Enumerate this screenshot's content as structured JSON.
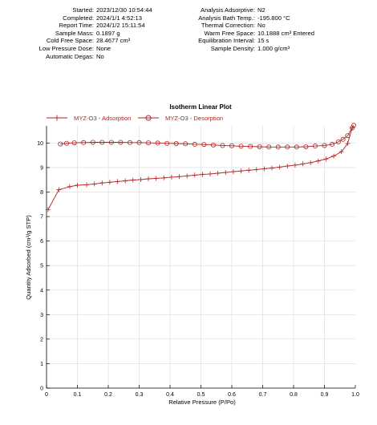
{
  "info_left": [
    {
      "label": "Started:",
      "value": "2023/12/30 10:54:44"
    },
    {
      "label": "Completed:",
      "value": "2024/1/1 4:52:13"
    },
    {
      "label": "Report Time:",
      "value": "2024/1/2 15:11:54"
    },
    {
      "label": "Sample Mass:",
      "value": "0.1897 g"
    },
    {
      "label": "Cold Free Space:",
      "value": "28.4677 cm³"
    },
    {
      "label": "Low Pressure Dose:",
      "value": "None"
    },
    {
      "label": "Automatic Degas:",
      "value": "No"
    }
  ],
  "info_right": [
    {
      "label": "Analysis Adsorptive:",
      "value": "N2"
    },
    {
      "label": "Analysis Bath Temp.:",
      "value": "-195.800 °C"
    },
    {
      "label": "Thermal Correction:",
      "value": "No"
    },
    {
      "label": "Warm Free Space:",
      "value": "10.1888 cm³ Entered"
    },
    {
      "label": "Equilibration Interval:",
      "value": "15 s"
    },
    {
      "label": "Sample Density:",
      "value": "1.000 g/cm³"
    }
  ],
  "colors": {
    "series": "#b22222",
    "grid": "#d9d9d9",
    "axis": "#000000"
  },
  "chart_data": {
    "type": "line",
    "title": "Isotherm Linear Plot",
    "xlabel": "Relative Pressure (P/Po)",
    "ylabel": "Quantity Adsorbed (cm³/g STP)",
    "xlim": [
      0,
      1.0
    ],
    "ylim": [
      0,
      10.7
    ],
    "xticks": [
      0,
      0.1,
      0.2,
      0.3,
      0.4,
      0.5,
      0.6,
      0.7,
      0.8,
      0.9,
      1.0
    ],
    "xtick_labels": [
      "0",
      "0.1",
      "0.2",
      "0.3",
      "0.4",
      "0.5",
      "0.6",
      "0.7",
      "0.8",
      "0.9",
      "1.0"
    ],
    "yticks": [
      0,
      1,
      2,
      3,
      4,
      5,
      6,
      7,
      8,
      9,
      10
    ],
    "ytick_labels": [
      "0",
      "1",
      "2",
      "3",
      "4",
      "5",
      "6",
      "7",
      "8",
      "9",
      "10"
    ],
    "grid": true,
    "legend_position": "top-left",
    "series": [
      {
        "name": "MYZ-O3 - Adsorption",
        "marker": "plus",
        "x": [
          0.005,
          0.04,
          0.075,
          0.1,
          0.13,
          0.155,
          0.18,
          0.205,
          0.23,
          0.255,
          0.28,
          0.305,
          0.33,
          0.355,
          0.38,
          0.405,
          0.43,
          0.455,
          0.48,
          0.505,
          0.53,
          0.555,
          0.58,
          0.605,
          0.63,
          0.655,
          0.68,
          0.705,
          0.73,
          0.755,
          0.78,
          0.805,
          0.83,
          0.855,
          0.88,
          0.905,
          0.93,
          0.955,
          0.975,
          0.99
        ],
        "y": [
          7.28,
          8.1,
          8.22,
          8.28,
          8.3,
          8.33,
          8.37,
          8.4,
          8.43,
          8.46,
          8.49,
          8.51,
          8.54,
          8.56,
          8.58,
          8.61,
          8.63,
          8.66,
          8.69,
          8.72,
          8.74,
          8.77,
          8.8,
          8.83,
          8.86,
          8.89,
          8.92,
          8.95,
          8.98,
          9.02,
          9.06,
          9.1,
          9.15,
          9.2,
          9.27,
          9.35,
          9.47,
          9.65,
          9.98,
          10.62
        ]
      },
      {
        "name": "MYZ-O3 - Desorption",
        "marker": "circle",
        "x": [
          0.995,
          0.99,
          0.975,
          0.96,
          0.945,
          0.925,
          0.9,
          0.87,
          0.84,
          0.81,
          0.78,
          0.75,
          0.72,
          0.69,
          0.66,
          0.63,
          0.6,
          0.57,
          0.54,
          0.51,
          0.48,
          0.45,
          0.42,
          0.39,
          0.36,
          0.33,
          0.3,
          0.27,
          0.24,
          0.21,
          0.18,
          0.15,
          0.12,
          0.09,
          0.065,
          0.045
        ],
        "y": [
          10.72,
          10.62,
          10.3,
          10.15,
          10.05,
          9.95,
          9.9,
          9.88,
          9.85,
          9.84,
          9.84,
          9.84,
          9.84,
          9.85,
          9.86,
          9.87,
          9.89,
          9.9,
          9.92,
          9.94,
          9.95,
          9.97,
          9.98,
          9.99,
          10.0,
          10.01,
          10.02,
          10.02,
          10.03,
          10.03,
          10.03,
          10.03,
          10.02,
          10.01,
          9.99,
          9.96
        ]
      }
    ]
  }
}
